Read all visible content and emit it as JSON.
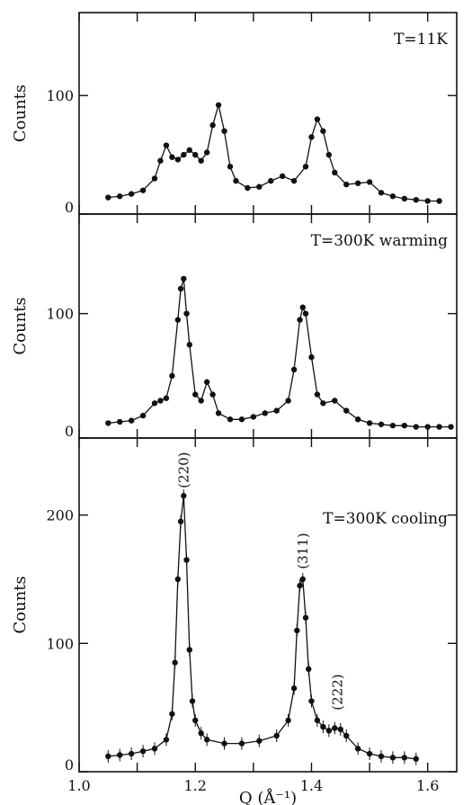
{
  "chart_data": {
    "type": "line",
    "xlabel": "Q  (Å⁻¹)",
    "xlim": [
      1.0,
      1.65
    ],
    "x_ticks": [
      1.0,
      1.1,
      1.2,
      1.3,
      1.4,
      1.5,
      1.6
    ],
    "x_tick_labels": [
      "1.0",
      "1.2",
      "1.4",
      "1.6"
    ],
    "x_tick_label_values": [
      1.0,
      1.2,
      1.4,
      1.6
    ],
    "panels": [
      {
        "label": "T=11K",
        "ylabel": "Counts",
        "ylim": [
          0,
          170
        ],
        "yticks": [
          0,
          100
        ],
        "ytick_labels": [
          "0",
          "100"
        ],
        "series": [
          {
            "x": [
              1.05,
              1.07,
              1.09,
              1.11,
              1.13,
              1.14,
              1.15,
              1.16,
              1.17,
              1.18,
              1.19,
              1.2,
              1.21,
              1.22,
              1.23,
              1.24,
              1.25,
              1.26,
              1.27,
              1.29,
              1.31,
              1.33,
              1.35,
              1.37,
              1.39,
              1.4,
              1.41,
              1.42,
              1.43,
              1.44,
              1.46,
              1.48,
              1.5,
              1.52,
              1.54,
              1.56,
              1.58,
              1.6,
              1.62
            ],
            "y": [
              14,
              15,
              17,
              20,
              30,
              45,
              58,
              48,
              46,
              50,
              54,
              50,
              45,
              52,
              75,
              92,
              70,
              40,
              28,
              22,
              23,
              28,
              32,
              28,
              40,
              65,
              80,
              70,
              50,
              35,
              25,
              26,
              27,
              18,
              15,
              13,
              12,
              11,
              11
            ]
          }
        ]
      },
      {
        "label": "T=300K  warming",
        "ylabel": "Counts",
        "ylim": [
          0,
          180
        ],
        "yticks": [
          0,
          100
        ],
        "ytick_labels": [
          "0",
          "100"
        ],
        "series": [
          {
            "x": [
              1.05,
              1.07,
              1.09,
              1.11,
              1.13,
              1.14,
              1.15,
              1.16,
              1.17,
              1.175,
              1.18,
              1.185,
              1.19,
              1.2,
              1.21,
              1.22,
              1.23,
              1.24,
              1.26,
              1.28,
              1.3,
              1.32,
              1.34,
              1.36,
              1.37,
              1.38,
              1.385,
              1.39,
              1.4,
              1.41,
              1.42,
              1.44,
              1.46,
              1.48,
              1.5,
              1.52,
              1.54,
              1.56,
              1.58,
              1.6,
              1.62,
              1.64
            ],
            "y": [
              12,
              13,
              14,
              18,
              28,
              30,
              32,
              50,
              95,
              120,
              128,
              100,
              75,
              35,
              30,
              45,
              35,
              20,
              15,
              15,
              17,
              20,
              22,
              30,
              55,
              95,
              105,
              100,
              65,
              35,
              28,
              30,
              22,
              15,
              12,
              11,
              10,
              10,
              9,
              9,
              9,
              9
            ]
          }
        ]
      },
      {
        "label": "T=300K  cooling",
        "ylabel": "Counts",
        "ylim": [
          0,
          260
        ],
        "yticks": [
          0,
          100,
          200
        ],
        "ytick_labels": [
          "0",
          "100",
          "200"
        ],
        "annotations": [
          {
            "text": "(220)",
            "x": 1.18,
            "y": 235
          },
          {
            "text": "(311)",
            "x": 1.385,
            "y": 172
          },
          {
            "text": "(222)",
            "x": 1.445,
            "y": 62
          }
        ],
        "series": [
          {
            "x": [
              1.05,
              1.07,
              1.09,
              1.11,
              1.13,
              1.15,
              1.16,
              1.165,
              1.17,
              1.175,
              1.18,
              1.185,
              1.19,
              1.195,
              1.2,
              1.21,
              1.22,
              1.25,
              1.28,
              1.31,
              1.34,
              1.36,
              1.37,
              1.375,
              1.38,
              1.385,
              1.39,
              1.395,
              1.4,
              1.41,
              1.42,
              1.43,
              1.44,
              1.45,
              1.46,
              1.48,
              1.5,
              1.52,
              1.54,
              1.56,
              1.58
            ],
            "y": [
              12,
              13,
              14,
              16,
              18,
              25,
              45,
              85,
              150,
              195,
              215,
              165,
              95,
              55,
              40,
              30,
              25,
              22,
              22,
              24,
              28,
              40,
              65,
              110,
              145,
              150,
              120,
              80,
              55,
              40,
              35,
              32,
              34,
              33,
              28,
              18,
              14,
              12,
              11,
              11,
              10
            ]
          }
        ]
      }
    ]
  }
}
